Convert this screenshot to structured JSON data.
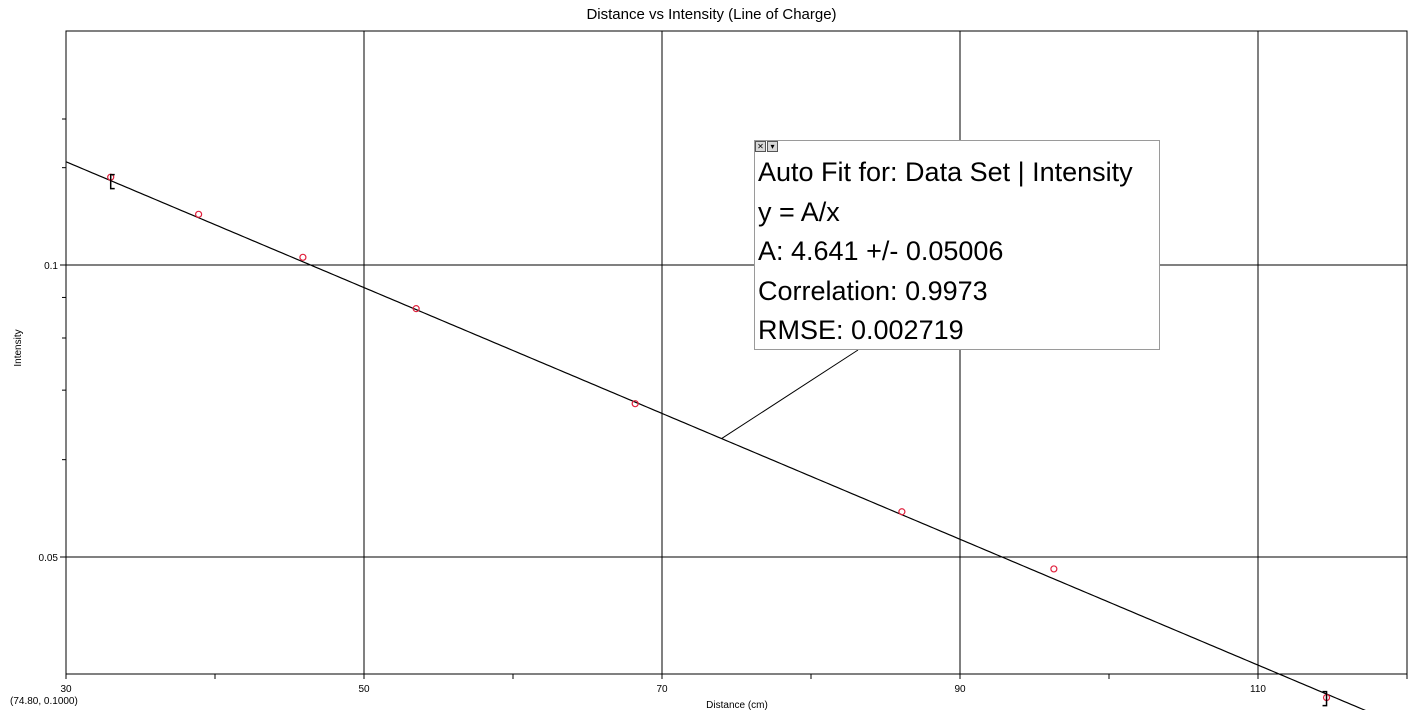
{
  "chart_data": {
    "type": "scatter",
    "title": "Distance vs Intensity (Line of Charge)",
    "xlabel": "Distance (cm)",
    "ylabel": "Intensity",
    "xlim": [
      30,
      120
    ],
    "ylim": [
      0.035,
      0.3
    ],
    "y_scale": "reciprocal",
    "x_ticks": [
      "30",
      "50",
      "70",
      "90",
      "110"
    ],
    "y_ticks": [
      "0.1",
      "0.05"
    ],
    "grid": true,
    "series": [
      {
        "points": [
          {
            "x": 33.0,
            "y": 0.143
          },
          {
            "x": 38.9,
            "y": 0.121
          },
          {
            "x": 45.9,
            "y": 0.1027
          },
          {
            "x": 53.5,
            "y": 0.087
          },
          {
            "x": 68.2,
            "y": 0.0678
          },
          {
            "x": 86.1,
            "y": 0.0542
          },
          {
            "x": 96.3,
            "y": 0.049
          },
          {
            "x": 114.6,
            "y": 0.0403
          }
        ],
        "marker_color": "#e0203c"
      }
    ],
    "fit": {
      "model": "y = A/x",
      "A": 4.641,
      "line_color": "#000000"
    },
    "range_bracket": {
      "left_x": 33.0,
      "right_x": 114.6
    }
  },
  "fit_box": {
    "lines": [
      "Auto Fit for: Data Set | Intensity",
      "y = A/x",
      "A: 4.641 +/- 0.05006",
      "Correlation: 0.9973",
      "RMSE: 0.002719"
    ],
    "close_glyph": "✕",
    "menu_glyph": "▾",
    "callout_x": 74.0
  },
  "coord_readout": "(74.80, 0.1000)"
}
